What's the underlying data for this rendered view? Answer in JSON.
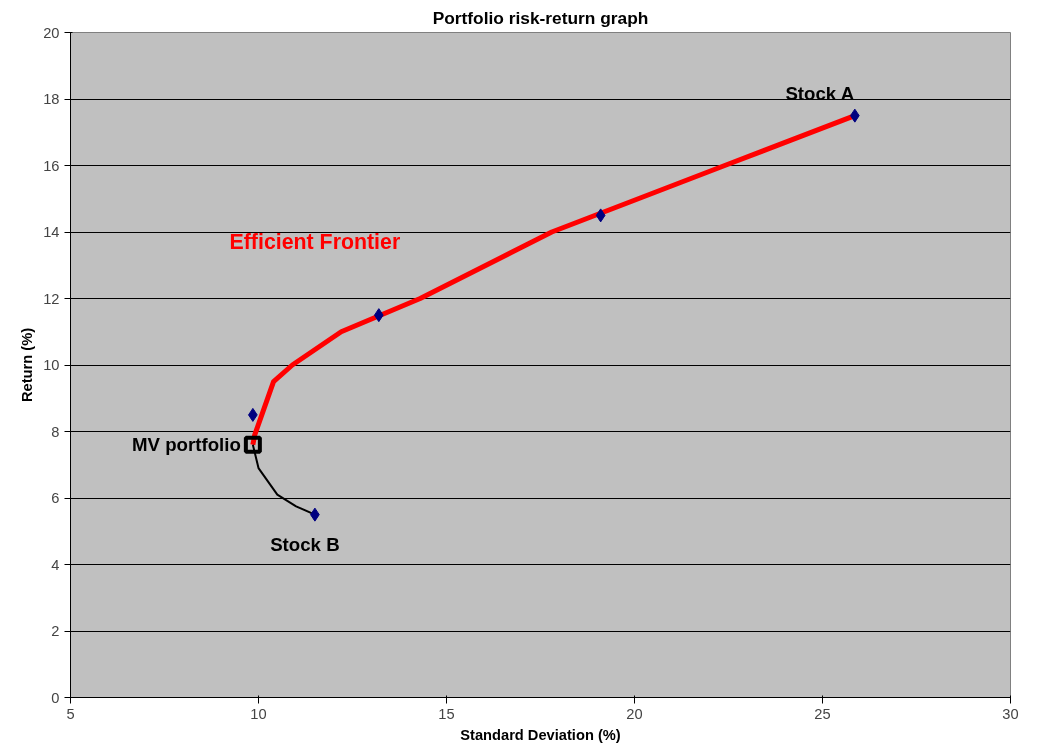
{
  "chart_data": {
    "type": "scatter",
    "title": "Portfolio risk-return graph",
    "xlabel": "Standard Deviation (%)",
    "ylabel": "Return (%)",
    "xlim": [
      5,
      30
    ],
    "xticks": [
      5,
      10,
      15,
      20,
      25,
      30
    ],
    "ylim": [
      0,
      20
    ],
    "yticks": [
      0,
      2,
      4,
      6,
      8,
      10,
      12,
      14,
      16,
      18,
      20
    ],
    "grid": "y",
    "series": [
      {
        "name": "Efficient Frontier",
        "type": "line",
        "color": "#ff0000",
        "marker": "none",
        "x": [
          9.85,
          9.9,
          10.4,
          10.9,
          12.2,
          14.3,
          17.8,
          22.4,
          25.86
        ],
        "values": [
          7.6,
          7.9,
          9.5,
          10,
          11,
          12,
          14,
          16,
          17.5
        ]
      },
      {
        "type": "line",
        "color": "#000000",
        "marker": "none",
        "x": [
          9.85,
          10.0,
          10.5,
          11.0,
          11.5
        ],
        "values": [
          7.6,
          6.9,
          6.1,
          5.75,
          5.5
        ]
      },
      {
        "color": "#000080",
        "marker": "diamond",
        "x": [
          25.86,
          19.1,
          13.2,
          9.85,
          11.5
        ],
        "values": [
          17.5,
          14.5,
          11.5,
          8.5,
          5.5
        ]
      },
      {
        "name": "MV portfolio",
        "color": "#000000",
        "marker": "square",
        "x": [
          9.85
        ],
        "values": [
          7.6
        ]
      }
    ],
    "annotations": [
      {
        "text": "Stock A",
        "x": 25.86,
        "y": 17.5
      },
      {
        "text": "Stock B",
        "x": 11.5,
        "y": 5.5
      }
    ]
  }
}
